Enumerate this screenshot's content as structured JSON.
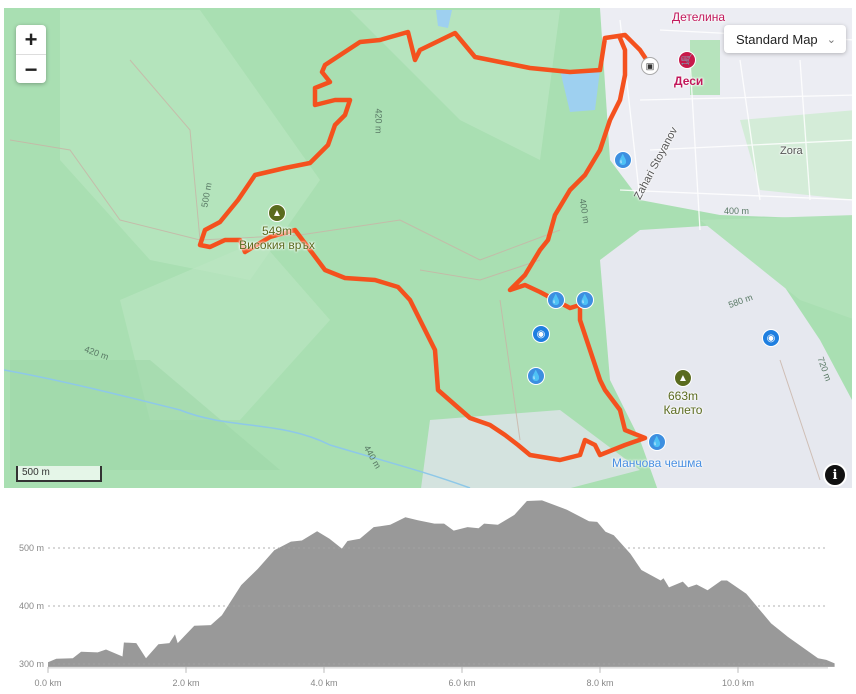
{
  "map": {
    "zoom_in_label": "+",
    "zoom_out_label": "−",
    "layer_select": {
      "value": "Standard Map",
      "icon": "chevron-down-icon"
    },
    "scale_label": "500 m",
    "info_label": "i",
    "route_color": "#f4511e",
    "places": {
      "district_detelina": "Детелина",
      "shop_desi": "Деси",
      "street_zahari": "Zahari Stoyanov",
      "district_zora": "Zora",
      "spring_manchova": "Манчова чешма"
    },
    "peaks": [
      {
        "elevation": "549m",
        "name": "Високия връх"
      },
      {
        "elevation": "663m",
        "name": "Калето"
      }
    ],
    "contour_labels": [
      "420 m",
      "500 m",
      "420 m",
      "440 m",
      "400 m",
      "400 m",
      "580 m",
      "720 m"
    ],
    "markers": {
      "water": 5,
      "camera": 2
    }
  },
  "chart_data": {
    "type": "area",
    "title": "",
    "xlabel": "",
    "ylabel": "",
    "xlim": [
      0,
      11.4
    ],
    "ylim": [
      295,
      600
    ],
    "x_ticks": [
      "0.0 km",
      "2.0 km",
      "4.0 km",
      "6.0 km",
      "8.0 km",
      "10.0 km"
    ],
    "x_tick_values": [
      0,
      2,
      4,
      6,
      8,
      10
    ],
    "y_ticks": [
      "300 m",
      "400 m",
      "500 m"
    ],
    "y_tick_values": [
      300,
      400,
      500
    ],
    "grid": "horizontal dashed",
    "fill_color": "#999999",
    "x": [
      0,
      0.12,
      0.36,
      0.48,
      0.72,
      0.84,
      1.08,
      1.1,
      1.28,
      1.42,
      1.6,
      1.76,
      1.84,
      1.88,
      2.12,
      2.36,
      2.52,
      2.8,
      3.04,
      3.28,
      3.52,
      3.68,
      3.9,
      4.08,
      4.26,
      4.34,
      4.52,
      4.72,
      4.96,
      5.18,
      5.36,
      5.6,
      5.74,
      5.88,
      6.08,
      6.24,
      6.32,
      6.52,
      6.76,
      6.94,
      7.16,
      7.52,
      7.84,
      7.96,
      8.08,
      8.2,
      8.44,
      8.6,
      8.88,
      8.92,
      9.0,
      9.2,
      9.28,
      9.4,
      9.56,
      9.76,
      9.84,
      10.12,
      10.48,
      10.72,
      11.16,
      11.28,
      11.4
    ],
    "y": [
      303,
      309,
      310,
      321,
      320,
      325,
      313,
      337,
      336,
      310,
      334,
      336,
      351,
      336,
      366,
      367,
      384,
      436,
      464,
      496,
      511,
      513,
      529,
      516,
      499,
      512,
      516,
      536,
      540,
      553,
      548,
      542,
      542,
      530,
      536,
      534,
      542,
      540,
      557,
      581,
      582,
      566,
      546,
      545,
      528,
      522,
      490,
      462,
      444,
      448,
      432,
      442,
      432,
      437,
      427,
      444,
      444,
      421,
      370,
      347,
      310,
      307,
      301
    ]
  }
}
